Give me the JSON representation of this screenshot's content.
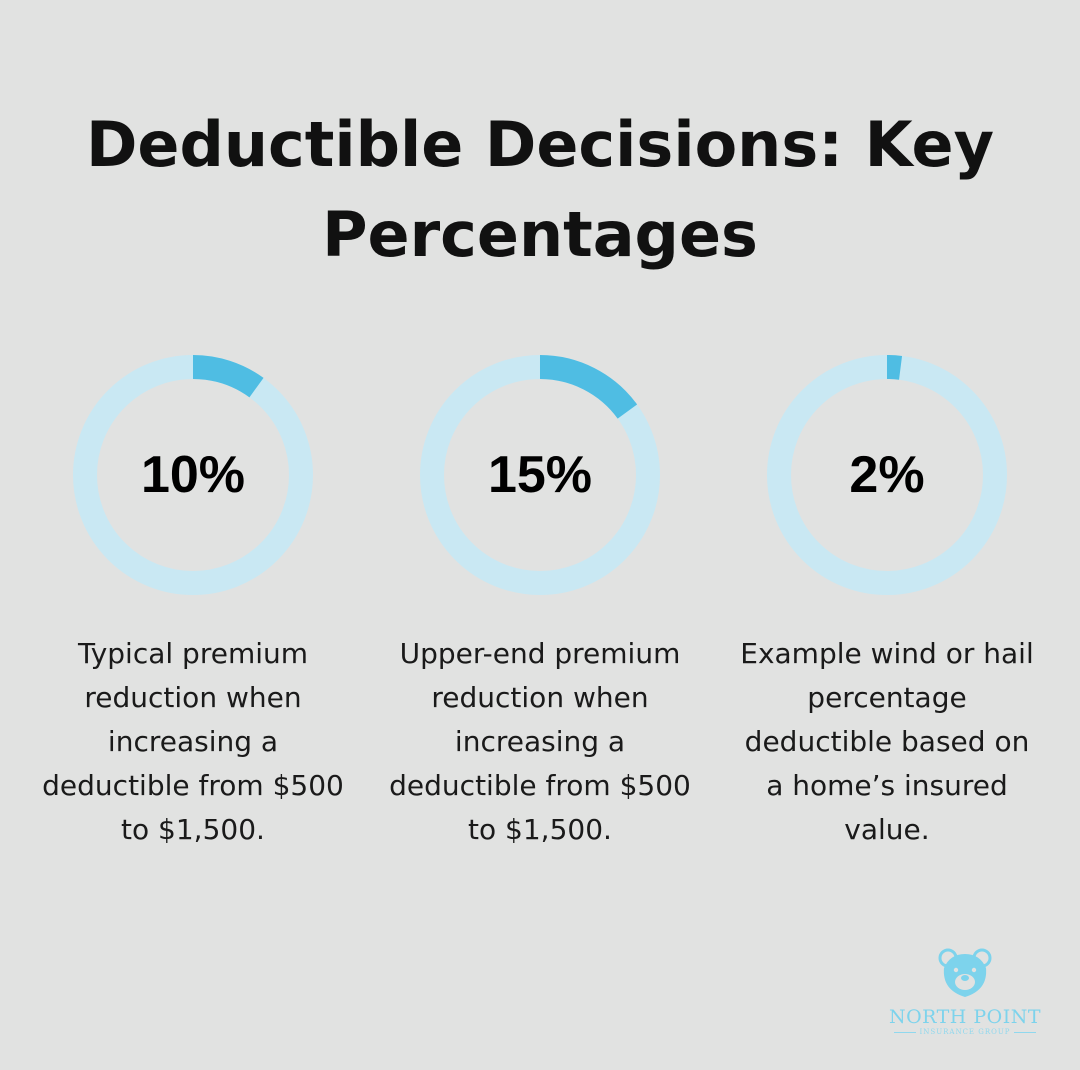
{
  "title": {
    "line1": "Deductible Decisions: Key",
    "line2": "Percentages"
  },
  "colors": {
    "background": "#e1e2e1",
    "ring_track": "#c9e8f3",
    "ring_fill": "#4fbde3",
    "logo": "#7dd3ec"
  },
  "chart_data": {
    "type": "donut",
    "items": [
      {
        "value": 10,
        "label": "10%",
        "description": "Typical premium reduction when increasing a deductible from $500 to $1,500."
      },
      {
        "value": 15,
        "label": "15%",
        "description": "Upper-end premium reduction when increasing a deductible from $500 to $1,500."
      },
      {
        "value": 2,
        "label": "2%",
        "description": "Example wind or hail percentage deductible based on a home’s insured value."
      }
    ]
  },
  "logo": {
    "icon": "bear-icon",
    "name": "NORTH POINT",
    "subtitle": "INSURANCE GROUP"
  }
}
